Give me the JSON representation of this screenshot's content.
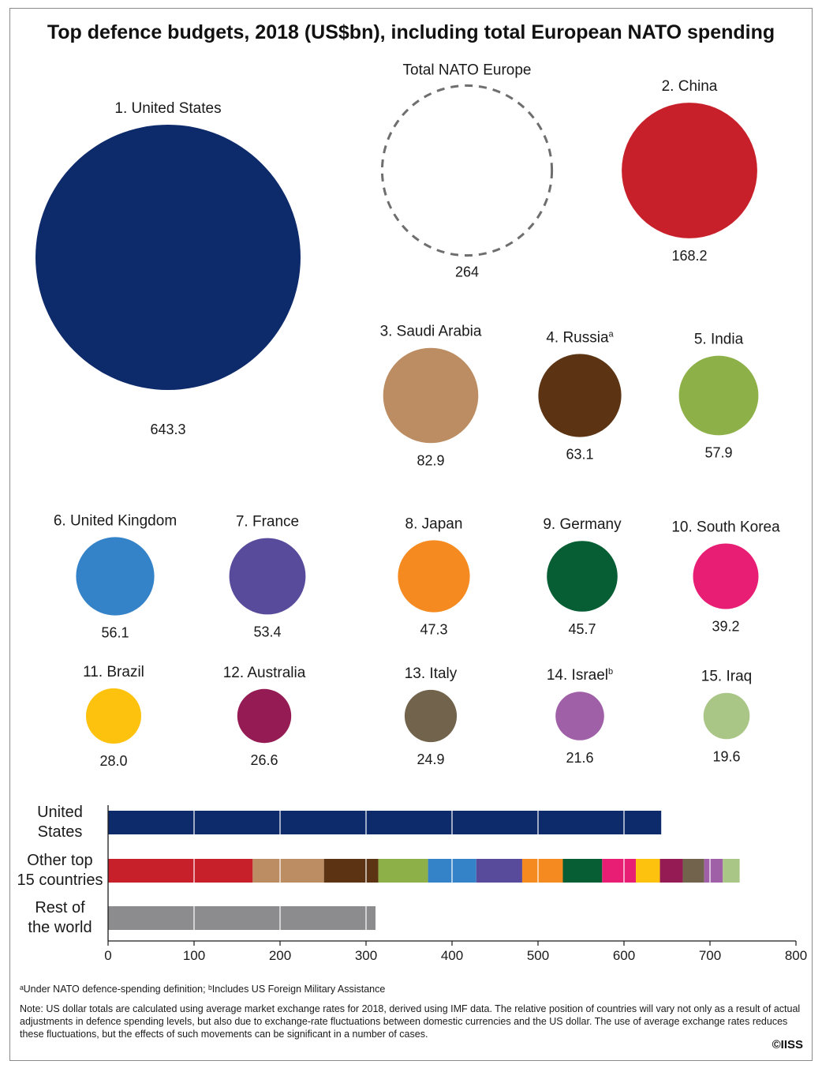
{
  "chart_data": [
    {
      "type": "bubble",
      "title": "Top defence budgets, 2018 (US$bn), including total European NATO spending",
      "reference": {
        "label": "Total NATO Europe",
        "value": 264,
        "value_label": "264",
        "style": "dashed-outline"
      },
      "items": [
        {
          "rank": "1. United States",
          "sup": "",
          "value": 643.3,
          "value_label": "643.3",
          "color": "#0d2a6b"
        },
        {
          "rank": "2. China",
          "sup": "",
          "value": 168.2,
          "value_label": "168.2",
          "color": "#c8202a"
        },
        {
          "rank": "3. Saudi Arabia",
          "sup": "",
          "value": 82.9,
          "value_label": "82.9",
          "color": "#bc8c62"
        },
        {
          "rank": "4. Russia",
          "sup": "a",
          "value": 63.1,
          "value_label": "63.1",
          "color": "#5c3413"
        },
        {
          "rank": "5. India",
          "sup": "",
          "value": 57.9,
          "value_label": "57.9",
          "color": "#8db048"
        },
        {
          "rank": "6. United Kingdom",
          "sup": "",
          "value": 56.1,
          "value_label": "56.1",
          "color": "#3483c9"
        },
        {
          "rank": "7. France",
          "sup": "",
          "value": 53.4,
          "value_label": "53.4",
          "color": "#584b9c"
        },
        {
          "rank": "8. Japan",
          "sup": "",
          "value": 47.3,
          "value_label": "47.3",
          "color": "#f58a20"
        },
        {
          "rank": "9. Germany",
          "sup": "",
          "value": 45.7,
          "value_label": "45.7",
          "color": "#075e34"
        },
        {
          "rank": "10. South Korea",
          "sup": "",
          "value": 39.2,
          "value_label": "39.2",
          "color": "#e81e75"
        },
        {
          "rank": "11. Brazil",
          "sup": "",
          "value": 28.0,
          "value_label": "28.0",
          "color": "#fdc20e"
        },
        {
          "rank": "12. Australia",
          "sup": "",
          "value": 26.6,
          "value_label": "26.6",
          "color": "#951b54"
        },
        {
          "rank": "13. Italy",
          "sup": "",
          "value": 24.9,
          "value_label": "24.9",
          "color": "#72644c"
        },
        {
          "rank": "14. Israel",
          "sup": "b",
          "value": 21.6,
          "value_label": "21.6",
          "color": "#a060a8"
        },
        {
          "rank": "15. Iraq",
          "sup": "",
          "value": 19.6,
          "value_label": "19.6",
          "color": "#aac686"
        }
      ]
    },
    {
      "type": "bar",
      "orientation": "horizontal",
      "stacked": true,
      "xlim": [
        0,
        800
      ],
      "xticks": [
        0,
        100,
        200,
        300,
        400,
        500,
        600,
        700,
        800
      ],
      "grid": "white lines every 100 inside bars",
      "rows": [
        {
          "label_lines": [
            "United",
            "States"
          ],
          "segments": [
            {
              "value": 643.3,
              "color": "#0d2a6b"
            }
          ]
        },
        {
          "label_lines": [
            "Other top",
            "15 countries"
          ],
          "segments": [
            {
              "value": 168.2,
              "color": "#c8202a"
            },
            {
              "value": 82.9,
              "color": "#bc8c62"
            },
            {
              "value": 63.1,
              "color": "#5c3413"
            },
            {
              "value": 57.9,
              "color": "#8db048"
            },
            {
              "value": 56.1,
              "color": "#3483c9"
            },
            {
              "value": 53.4,
              "color": "#584b9c"
            },
            {
              "value": 47.3,
              "color": "#f58a20"
            },
            {
              "value": 45.7,
              "color": "#075e34"
            },
            {
              "value": 39.2,
              "color": "#e81e75"
            },
            {
              "value": 28.0,
              "color": "#fdc20e"
            },
            {
              "value": 26.6,
              "color": "#951b54"
            },
            {
              "value": 24.9,
              "color": "#72644c"
            },
            {
              "value": 21.6,
              "color": "#a060a8"
            },
            {
              "value": 19.6,
              "color": "#aac686"
            }
          ]
        },
        {
          "label_lines": [
            "Rest of",
            "the world"
          ],
          "segments": [
            {
              "value": 311,
              "color": "#8c8c8e"
            }
          ]
        }
      ]
    }
  ],
  "footnote": "ᵃUnder NATO defence-spending definition; ᵇIncludes US Foreign Military Assistance",
  "note": "Note: US dollar totals are calculated using average market exchange rates for 2018, derived using IMF data. The relative position of countries will vary not only as a result of actual adjustments in defence spending levels, but also due to exchange-rate fluctuations between domestic currencies and the US dollar. The use of average exchange rates reduces these fluctuations, but the effects of such movements can be significant in a number of cases.",
  "copyright": "©IISS"
}
